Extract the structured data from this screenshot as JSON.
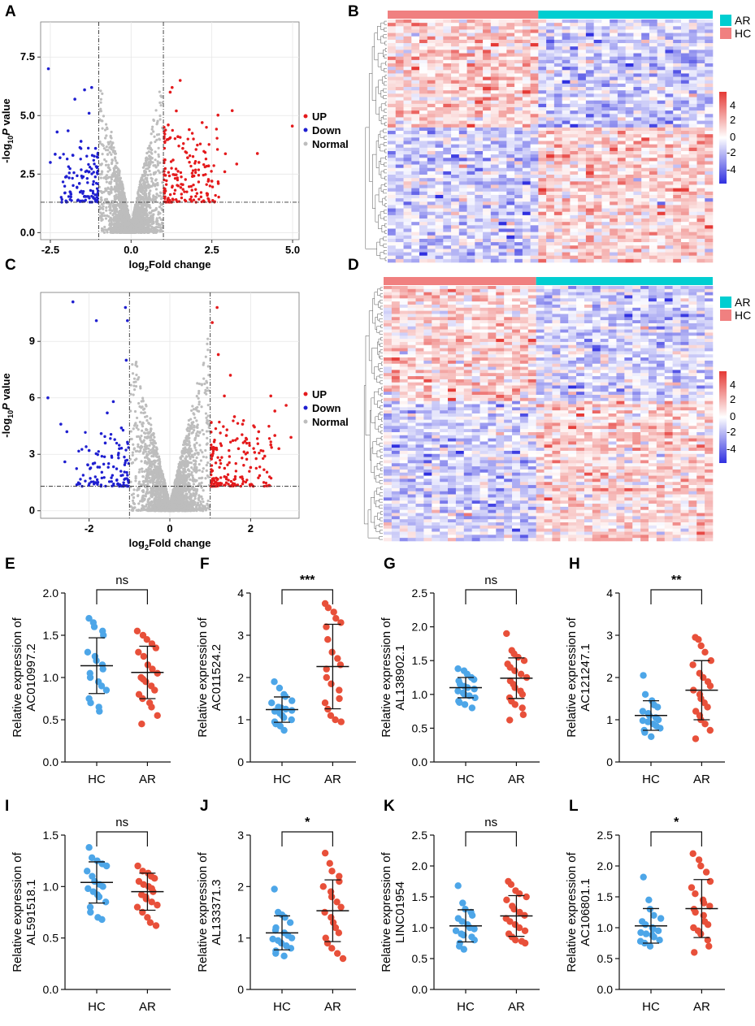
{
  "colors": {
    "up": "#e41a1c",
    "down": "#1f1fd0",
    "normal": "#bdbdbd",
    "hc_bar": "#f08080",
    "ar_bar": "#00ced1",
    "hc_points": "#4da6e8",
    "ar_points": "#e8503a",
    "heat_high": "#e53935",
    "heat_low": "#3030e0"
  },
  "panels": {
    "A": {
      "letter": "A"
    },
    "B": {
      "letter": "B"
    },
    "C": {
      "letter": "C"
    },
    "D": {
      "letter": "D"
    },
    "E": {
      "letter": "E"
    },
    "F": {
      "letter": "F"
    },
    "G": {
      "letter": "G"
    },
    "H": {
      "letter": "H"
    },
    "I": {
      "letter": "I"
    },
    "J": {
      "letter": "J"
    },
    "K": {
      "letter": "K"
    },
    "L": {
      "letter": "L"
    }
  },
  "volcano_legend": [
    "UP",
    "Down",
    "Normal"
  ],
  "heatmap_legend": {
    "groups": [
      "AR",
      "HC"
    ],
    "scale": [
      "4",
      "2",
      "0",
      "-2",
      "-4"
    ]
  },
  "chart_data": [
    {
      "id": "A",
      "type": "scatter",
      "title": "",
      "xlabel_main": "log",
      "xlabel_sub": "2",
      "xlabel_rest": "Fold change",
      "ylabel_pre": "-log",
      "ylabel_sub": "10",
      "ylabel_italic": "P",
      "ylabel_rest": " value",
      "xlim": [
        -2.8,
        5.2
      ],
      "ylim": [
        -0.3,
        9.0
      ],
      "xticks": [
        -2.5,
        0.0,
        2.5,
        5.0
      ],
      "xtick_labels": [
        "-2.5",
        "0.0",
        "2.5",
        "5.0"
      ],
      "yticks": [
        0.0,
        2.5,
        5.0,
        7.5
      ],
      "ytick_labels": [
        "0.0",
        "2.5",
        "5.0",
        "7.5"
      ],
      "fc_threshold": 1,
      "p_threshold": 1.3,
      "up_points": [
        [
          4.99,
          4.55
        ],
        [
          3.91,
          3.38
        ],
        [
          3.13,
          5.21
        ],
        [
          2.69,
          5.02
        ],
        [
          3.27,
          2.93
        ],
        [
          2.92,
          3.37
        ],
        [
          1.21,
          6.0
        ],
        [
          1.27,
          6.2
        ],
        [
          1.52,
          6.5
        ],
        [
          1.4,
          5.2
        ],
        [
          1.8,
          4.4
        ],
        [
          2.2,
          4.7
        ],
        [
          1.6,
          3.6
        ],
        [
          2.5,
          2.2
        ],
        [
          2.7,
          2.1
        ],
        [
          2.9,
          2.6
        ],
        [
          2.1,
          3.0
        ],
        [
          1.9,
          2.4
        ],
        [
          1.3,
          3.1
        ],
        [
          2.4,
          2.85
        ],
        [
          1.6,
          2.05
        ],
        [
          1.15,
          4.6
        ],
        [
          1.45,
          4.1
        ],
        [
          1.75,
          3.2
        ]
      ],
      "down_points": [
        [
          -2.56,
          7.0
        ],
        [
          -1.44,
          6.1
        ],
        [
          -1.22,
          6.2
        ],
        [
          -1.74,
          5.7
        ],
        [
          -2.29,
          4.3
        ],
        [
          -1.95,
          4.35
        ],
        [
          -2.2,
          3.2
        ],
        [
          -2.5,
          3.0
        ],
        [
          -1.3,
          5.1
        ],
        [
          -1.55,
          3.9
        ],
        [
          -1.8,
          3.3
        ],
        [
          -2.0,
          2.4
        ],
        [
          -1.6,
          2.1
        ],
        [
          -1.3,
          2.6
        ],
        [
          -1.1,
          3.6
        ],
        [
          -2.35,
          3.35
        ]
      ],
      "series": [
        {
          "name": "UP"
        },
        {
          "name": "Down"
        },
        {
          "name": "Normal"
        }
      ]
    },
    {
      "id": "C",
      "type": "scatter",
      "title": "",
      "xlabel_main": "log",
      "xlabel_sub": "2",
      "xlabel_rest": "Fold change",
      "ylabel_pre": "-log",
      "ylabel_sub": "10",
      "ylabel_italic": "P",
      "ylabel_rest": " value",
      "xlim": [
        -3.2,
        3.2
      ],
      "ylim": [
        -0.4,
        11.6
      ],
      "xticks": [
        -2,
        0,
        2
      ],
      "xtick_labels": [
        "-2",
        "0",
        "2"
      ],
      "yticks": [
        0,
        3,
        6,
        9
      ],
      "ytick_labels": [
        "0",
        "3",
        "6",
        "9"
      ],
      "fc_threshold": 1,
      "p_threshold": 1.3,
      "up_points": [
        [
          1.17,
          10.8
        ],
        [
          1.05,
          10.0
        ],
        [
          1.2,
          8.3
        ],
        [
          1.5,
          7.2
        ],
        [
          1.35,
          6.1
        ],
        [
          2.5,
          6.1
        ],
        [
          2.88,
          5.6
        ],
        [
          2.6,
          5.3
        ],
        [
          3.0,
          3.9
        ],
        [
          2.6,
          4.0
        ],
        [
          2.2,
          4.2
        ],
        [
          1.9,
          3.8
        ],
        [
          2.5,
          3.5
        ],
        [
          2.7,
          3.3
        ],
        [
          2.35,
          2.9
        ],
        [
          1.6,
          5.0
        ],
        [
          1.8,
          4.6
        ],
        [
          2.1,
          3.1
        ],
        [
          1.4,
          4.0
        ],
        [
          2.0,
          2.3
        ],
        [
          1.7,
          3.3
        ]
      ],
      "down_points": [
        [
          -2.4,
          11.1
        ],
        [
          -1.82,
          10.1
        ],
        [
          -1.1,
          10.8
        ],
        [
          -1.05,
          10.1
        ],
        [
          -1.08,
          8.0
        ],
        [
          -3.02,
          6.0
        ],
        [
          -2.7,
          4.6
        ],
        [
          -2.55,
          4.2
        ],
        [
          -2.6,
          2.6
        ],
        [
          -1.4,
          5.8
        ],
        [
          -1.55,
          5.2
        ],
        [
          -1.2,
          4.4
        ],
        [
          -1.7,
          4.1
        ],
        [
          -2.0,
          3.2
        ],
        [
          -1.6,
          3.6
        ],
        [
          -1.25,
          3.3
        ],
        [
          -1.9,
          2.5
        ]
      ],
      "series": [
        {
          "name": "UP"
        },
        {
          "name": "Down"
        },
        {
          "name": "Normal"
        }
      ]
    },
    {
      "id": "B",
      "type": "heatmap",
      "groups": [
        "HC",
        "AR"
      ],
      "n_hc": 19,
      "n_ar": 22,
      "n_rows": 72,
      "scale_range": [
        -4,
        4
      ],
      "seed": 7,
      "top_hc_bias": 0.35
    },
    {
      "id": "D",
      "type": "heatmap",
      "groups": [
        "HC",
        "AR"
      ],
      "n_hc": 19,
      "n_ar": 22,
      "n_rows": 82,
      "scale_range": [
        -4,
        4
      ],
      "seed": 19,
      "top_hc_bias": 0.45
    },
    {
      "id": "E",
      "type": "scatter",
      "ylabel1": "Relative expression of",
      "ylabel2": "AC010997.2",
      "categories": [
        "HC",
        "AR"
      ],
      "ylim": [
        0,
        2.0
      ],
      "yticks": [
        0.0,
        0.5,
        1.0,
        1.5,
        2.0
      ],
      "ytick_labels": [
        "0.0",
        "0.5",
        "1.0",
        "1.5",
        "2.0"
      ],
      "sig": "ns",
      "series": [
        {
          "name": "HC",
          "mean": 1.14,
          "sd": 0.33,
          "values": [
            1.7,
            1.65,
            1.6,
            1.55,
            1.5,
            1.3,
            1.25,
            1.2,
            1.15,
            1.1,
            1.05,
            1.0,
            0.95,
            0.9,
            0.85,
            0.75,
            0.7,
            0.65,
            0.6
          ]
        },
        {
          "name": "AR",
          "mean": 1.06,
          "sd": 0.31,
          "values": [
            1.55,
            1.5,
            1.45,
            1.4,
            1.35,
            1.3,
            1.25,
            1.15,
            1.1,
            1.05,
            1.0,
            0.98,
            0.95,
            0.9,
            0.85,
            0.8,
            0.75,
            0.7,
            0.65,
            0.55,
            0.45
          ]
        }
      ]
    },
    {
      "id": "F",
      "type": "scatter",
      "ylabel1": "Relative expression of",
      "ylabel2": "AC011524.2",
      "categories": [
        "HC",
        "AR"
      ],
      "ylim": [
        0,
        4
      ],
      "yticks": [
        0,
        1,
        2,
        3,
        4
      ],
      "ytick_labels": [
        "0",
        "1",
        "2",
        "3",
        "4"
      ],
      "sig": "***",
      "series": [
        {
          "name": "HC",
          "mean": 1.24,
          "sd": 0.3,
          "values": [
            1.9,
            1.75,
            1.6,
            1.55,
            1.45,
            1.4,
            1.3,
            1.28,
            1.25,
            1.22,
            1.2,
            1.15,
            1.1,
            1.05,
            1.0,
            0.95,
            0.9,
            0.85,
            0.75
          ]
        },
        {
          "name": "AR",
          "mean": 2.26,
          "sd": 1.0,
          "values": [
            3.75,
            3.65,
            3.55,
            3.4,
            3.3,
            3.2,
            2.9,
            2.6,
            2.45,
            2.3,
            2.2,
            2.0,
            1.85,
            1.7,
            1.5,
            1.4,
            1.25,
            1.1,
            1.0,
            0.95
          ]
        }
      ]
    },
    {
      "id": "G",
      "type": "scatter",
      "ylabel1": "Relative expression of",
      "ylabel2": "AL138902.1",
      "categories": [
        "HC",
        "AR"
      ],
      "ylim": [
        0,
        2.5
      ],
      "yticks": [
        0.0,
        0.5,
        1.0,
        1.5,
        2.0,
        2.5
      ],
      "ytick_labels": [
        "0.0",
        "0.5",
        "1.0",
        "1.5",
        "2.0",
        "2.5"
      ],
      "sig": "ns",
      "series": [
        {
          "name": "HC",
          "mean": 1.1,
          "sd": 0.15,
          "values": [
            1.38,
            1.35,
            1.3,
            1.25,
            1.22,
            1.2,
            1.15,
            1.12,
            1.1,
            1.08,
            1.05,
            1.02,
            1.0,
            0.98,
            0.95,
            0.9,
            0.88,
            0.85,
            0.8
          ]
        },
        {
          "name": "AR",
          "mean": 1.24,
          "sd": 0.3,
          "values": [
            1.9,
            1.65,
            1.6,
            1.55,
            1.5,
            1.45,
            1.4,
            1.35,
            1.3,
            1.25,
            1.2,
            1.15,
            1.1,
            1.05,
            1.0,
            0.95,
            0.9,
            0.85,
            0.8,
            0.7,
            0.62
          ]
        }
      ]
    },
    {
      "id": "H",
      "type": "scatter",
      "ylabel1": "Relative expression of",
      "ylabel2": "AC121247.1",
      "categories": [
        "HC",
        "AR"
      ],
      "ylim": [
        0,
        4
      ],
      "yticks": [
        0,
        1,
        2,
        3,
        4
      ],
      "ytick_labels": [
        "0",
        "1",
        "2",
        "3",
        "4"
      ],
      "sig": "**",
      "series": [
        {
          "name": "HC",
          "mean": 1.1,
          "sd": 0.35,
          "values": [
            2.05,
            1.6,
            1.45,
            1.35,
            1.3,
            1.2,
            1.15,
            1.1,
            1.05,
            1.0,
            0.98,
            0.95,
            0.9,
            0.85,
            0.8,
            0.75,
            0.7,
            0.6
          ]
        },
        {
          "name": "AR",
          "mean": 1.7,
          "sd": 0.7,
          "values": [
            2.95,
            2.9,
            2.75,
            2.6,
            2.4,
            2.3,
            2.1,
            2.0,
            1.9,
            1.8,
            1.7,
            1.6,
            1.5,
            1.4,
            1.3,
            1.2,
            1.1,
            1.0,
            0.9,
            0.75,
            0.55
          ]
        }
      ]
    },
    {
      "id": "I",
      "type": "scatter",
      "ylabel1": "Relative expression of",
      "ylabel2": "AL591518.1",
      "categories": [
        "HC",
        "AR"
      ],
      "ylim": [
        0,
        1.5
      ],
      "yticks": [
        0.0,
        0.5,
        1.0,
        1.5
      ],
      "ytick_labels": [
        "0.0",
        "0.5",
        "1.0",
        "1.5"
      ],
      "sig": "ns",
      "series": [
        {
          "name": "HC",
          "mean": 1.04,
          "sd": 0.2,
          "values": [
            1.38,
            1.28,
            1.25,
            1.22,
            1.2,
            1.15,
            1.1,
            1.05,
            1.02,
            1.0,
            0.98,
            0.95,
            0.92,
            0.9,
            0.85,
            0.8,
            0.75,
            0.7,
            0.68
          ]
        },
        {
          "name": "AR",
          "mean": 0.95,
          "sd": 0.18,
          "values": [
            1.2,
            1.15,
            1.13,
            1.1,
            1.08,
            1.05,
            1.02,
            1.0,
            0.98,
            0.95,
            0.92,
            0.9,
            0.88,
            0.85,
            0.82,
            0.8,
            0.75,
            0.7,
            0.65,
            0.62
          ]
        }
      ]
    },
    {
      "id": "J",
      "type": "scatter",
      "ylabel1": "Relative expression of",
      "ylabel2": "AL133371.3",
      "categories": [
        "HC",
        "AR"
      ],
      "ylim": [
        0,
        3
      ],
      "yticks": [
        0,
        1,
        2,
        3
      ],
      "ytick_labels": [
        "0",
        "1",
        "2",
        "3"
      ],
      "sig": "*",
      "series": [
        {
          "name": "HC",
          "mean": 1.1,
          "sd": 0.33,
          "values": [
            1.95,
            1.5,
            1.45,
            1.4,
            1.3,
            1.2,
            1.15,
            1.1,
            1.05,
            1.0,
            0.98,
            0.95,
            0.9,
            0.85,
            0.8,
            0.75,
            0.7,
            0.65
          ]
        },
        {
          "name": "AR",
          "mean": 1.53,
          "sd": 0.6,
          "values": [
            2.65,
            2.45,
            2.3,
            2.2,
            2.1,
            2.0,
            1.9,
            1.8,
            1.7,
            1.6,
            1.5,
            1.4,
            1.3,
            1.2,
            1.1,
            1.0,
            0.9,
            0.8,
            0.7,
            0.6
          ]
        }
      ]
    },
    {
      "id": "K",
      "type": "scatter",
      "ylabel1": "Relative expression of",
      "ylabel2": "LINC01954",
      "categories": [
        "HC",
        "AR"
      ],
      "ylim": [
        0,
        2.5
      ],
      "yticks": [
        0.0,
        0.5,
        1.0,
        1.5,
        2.0,
        2.5
      ],
      "ytick_labels": [
        "0.0",
        "0.5",
        "1.0",
        "1.5",
        "2.0",
        "2.5"
      ],
      "sig": "ns",
      "series": [
        {
          "name": "HC",
          "mean": 1.03,
          "sd": 0.26,
          "values": [
            1.68,
            1.4,
            1.3,
            1.25,
            1.2,
            1.15,
            1.1,
            1.05,
            1.0,
            0.98,
            0.95,
            0.9,
            0.88,
            0.85,
            0.8,
            0.75,
            0.7,
            0.65
          ]
        },
        {
          "name": "AR",
          "mean": 1.19,
          "sd": 0.33,
          "values": [
            1.75,
            1.7,
            1.6,
            1.55,
            1.5,
            1.45,
            1.35,
            1.3,
            1.25,
            1.2,
            1.15,
            1.1,
            1.05,
            1.0,
            0.95,
            0.9,
            0.85,
            0.8,
            0.78,
            0.75
          ]
        }
      ]
    },
    {
      "id": "L",
      "type": "scatter",
      "ylabel1": "Relative expression of",
      "ylabel2": "AC106801.1",
      "categories": [
        "HC",
        "AR"
      ],
      "ylim": [
        0,
        2.5
      ],
      "yticks": [
        0.0,
        0.5,
        1.0,
        1.5,
        2.0,
        2.5
      ],
      "ytick_labels": [
        "0.0",
        "0.5",
        "1.0",
        "1.5",
        "2.0",
        "2.5"
      ],
      "sig": "*",
      "series": [
        {
          "name": "HC",
          "mean": 1.03,
          "sd": 0.28,
          "values": [
            1.82,
            1.45,
            1.3,
            1.2,
            1.15,
            1.1,
            1.05,
            1.0,
            0.98,
            0.95,
            0.92,
            0.9,
            0.88,
            0.85,
            0.8,
            0.78,
            0.75,
            0.7
          ]
        },
        {
          "name": "AR",
          "mean": 1.31,
          "sd": 0.47,
          "values": [
            2.2,
            2.1,
            2.0,
            1.9,
            1.75,
            1.65,
            1.55,
            1.45,
            1.4,
            1.35,
            1.3,
            1.25,
            1.2,
            1.1,
            1.05,
            1.0,
            0.95,
            0.9,
            0.8,
            0.7,
            0.6
          ]
        }
      ]
    }
  ]
}
